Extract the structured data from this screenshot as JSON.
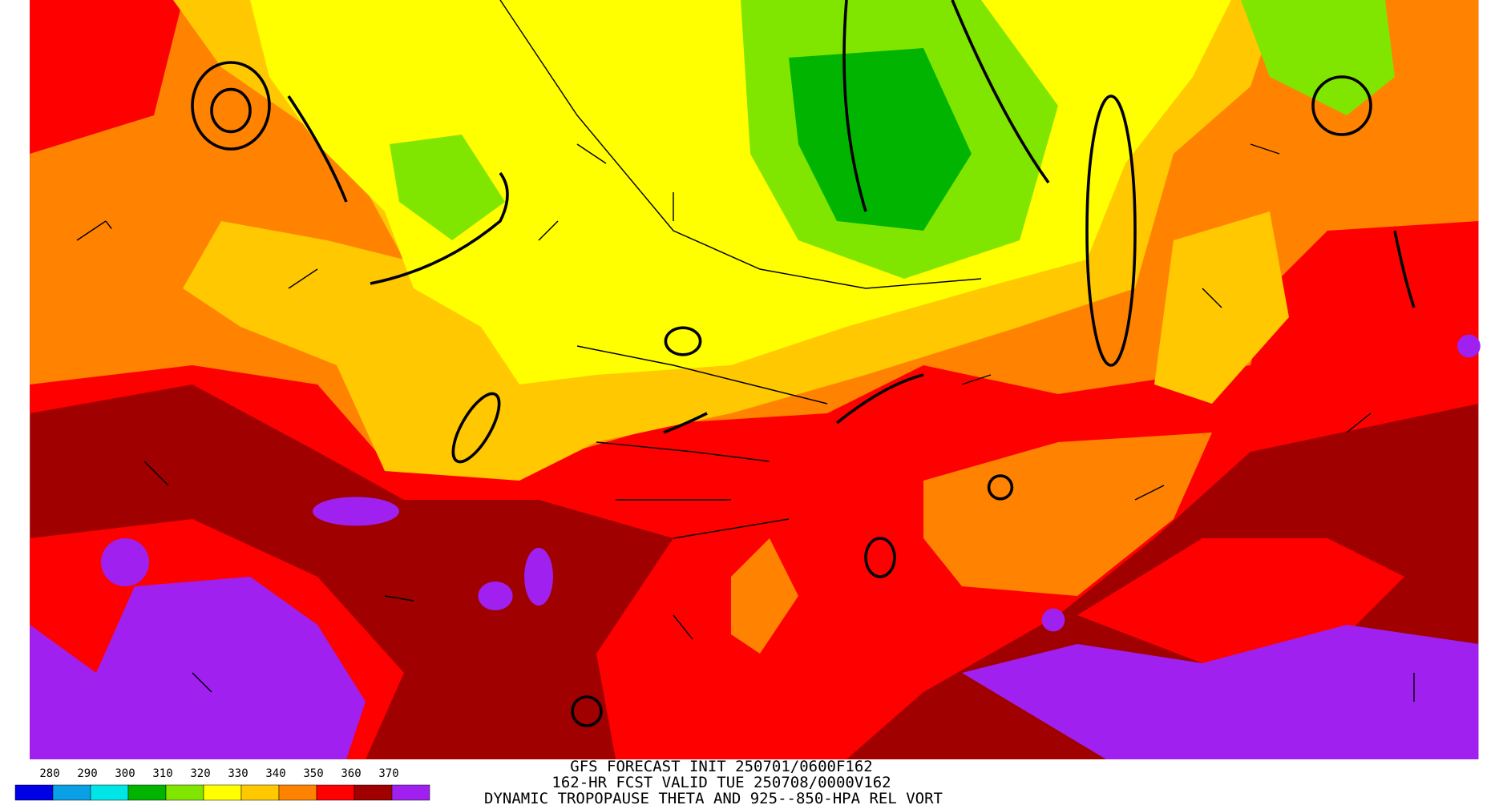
{
  "header": {
    "lines": [
      "GFS FORECAST INIT 250701/0600F162",
      "162-HR FCST VALID TUE 250708/0000V162",
      "DYNAMIC TROPOPAUSE THETA AND 925--850-HPA REL VORT"
    ]
  },
  "legend": {
    "boundaries": [
      280,
      290,
      300,
      310,
      320,
      330,
      340,
      350,
      360,
      370
    ],
    "colors": [
      "#0000e6",
      "#0aa0e6",
      "#00e6e6",
      "#00b400",
      "#80e600",
      "#ffff00",
      "#ffc800",
      "#ff8200",
      "#ff0000",
      "#a00000",
      "#a020f0"
    ]
  }
}
